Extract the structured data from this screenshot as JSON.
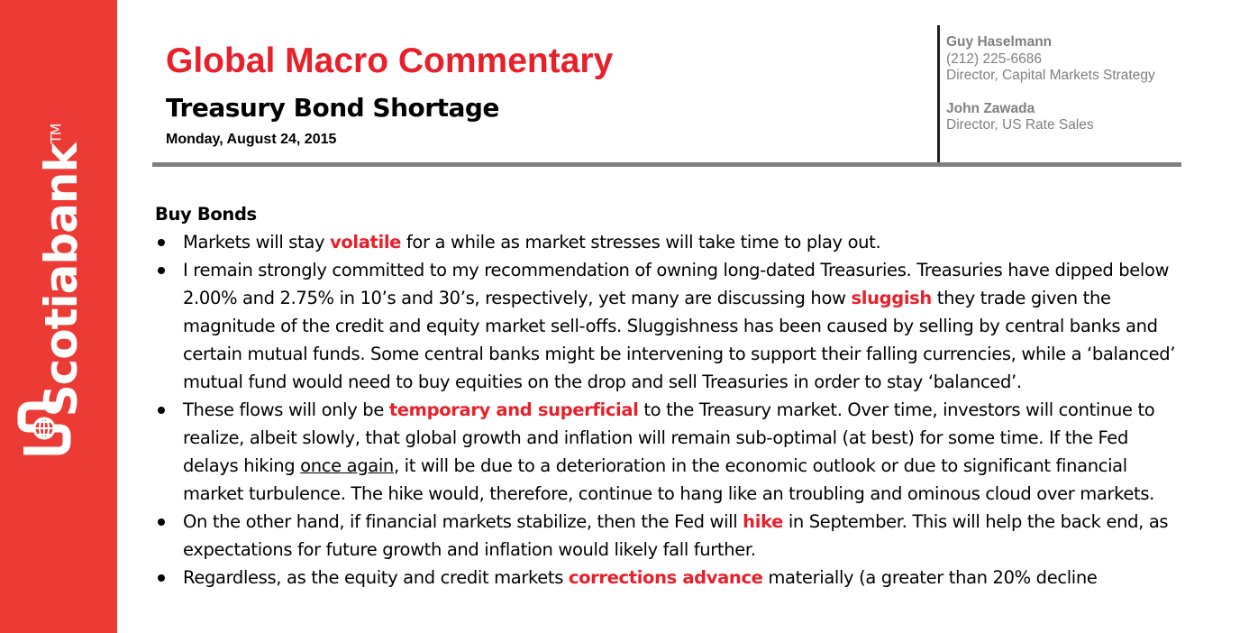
{
  "sidebar": {
    "brand": "Scotiabank",
    "trademark": "TM",
    "color": "#ec3a35"
  },
  "header": {
    "title": "Global Macro Commentary",
    "subtitle": "Treasury Bond Shortage",
    "date": "Monday, August 24, 2015",
    "accent_color": "#e8202a"
  },
  "authors": [
    {
      "name": "Guy Haselmann",
      "phone": "(212) 225-6686",
      "title": "Director, Capital Markets Strategy"
    },
    {
      "name": "John Zawada",
      "title": "Director, US Rate Sales"
    }
  ],
  "body": {
    "section_title": "Buy Bonds",
    "bullets": [
      {
        "a": "Markets will stay ",
        "h1": "volatile",
        "b": " for a while as market stresses will take time to play out."
      },
      {
        "a": "I remain strongly committed to my recommendation of owning long-dated Treasuries.  Treasuries have dipped below 2.00% and 2.75% in 10’s and 30’s, respectively, yet many are discussing how ",
        "h1": "sluggish",
        "b": " they trade given the magnitude of the credit and equity market sell-offs.  Sluggishness has been caused by selling by central banks and certain mutual funds. Some central banks might be intervening to support their falling currencies, while a ‘balanced’ mutual fund would need to buy equities on the drop and sell Treasuries in order to stay ‘balanced’."
      },
      {
        "a": "These flows will only be ",
        "h1": "temporary and superficial",
        "b": " to the Treasury market. Over time, investors will continue to realize, albeit slowly, that global growth and inflation will remain sub-optimal (at best) for some time. If the Fed delays hiking ",
        "u1": "once again",
        "c": ", it will be due to a deterioration in the economic outlook or due to significant financial market turbulence. The hike would, therefore, continue to hang like an troubling and ominous cloud over markets."
      },
      {
        "a": "On the other hand, if financial markets stabilize, then the Fed will ",
        "h1": "hike",
        "b": " in September. This will help the back end, as expectations for future growth and inflation would likely fall further."
      },
      {
        "a": "Regardless, as the equity and credit markets ",
        "h1": "corrections advance",
        "b": " materially (a greater than 20% decline"
      }
    ]
  }
}
